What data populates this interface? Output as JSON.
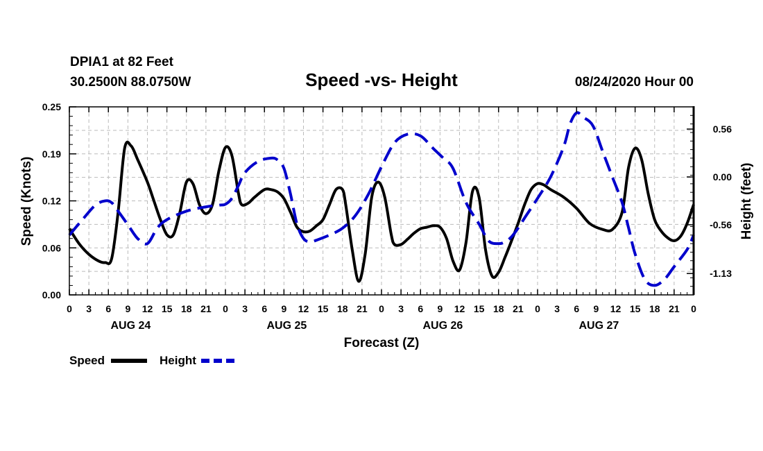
{
  "header": {
    "station": "DPIA1 at 82 Feet",
    "coords": "30.2500N 88.0750W",
    "title": "Speed -vs- Height",
    "datetime": "08/24/2020 Hour 00"
  },
  "legend": {
    "speed_label": "Speed",
    "height_label": "Height"
  },
  "colors": {
    "speed": "#000000",
    "height": "#0000cc",
    "grid": "#bbbbbb",
    "axis": "#000000"
  },
  "chart_data": {
    "type": "line",
    "title": "Speed -vs- Height",
    "xlabel": "Forecast (Z)",
    "ylabel": "Speed (Knots)",
    "y2label": "Height (feet)",
    "xlim": [
      0,
      96
    ],
    "ylim": [
      0,
      0.25
    ],
    "y2lim": [
      -1.38,
      0.82
    ],
    "y_ticks": [
      "0.00",
      "0.06",
      "0.12",
      "0.19",
      "0.25"
    ],
    "y_tick_values": [
      0,
      0.0625,
      0.125,
      0.1875,
      0.25
    ],
    "y2_ticks": [
      "-1.13",
      "-0.56",
      "0.00",
      "0.56"
    ],
    "y2_tick_values": [
      -1.13,
      -0.56,
      0,
      0.56
    ],
    "x_tick_hours": [
      0,
      3,
      6,
      9,
      12,
      15,
      18,
      21,
      24,
      27,
      30,
      33,
      36,
      39,
      42,
      45,
      48,
      51,
      54,
      57,
      60,
      63,
      66,
      69,
      72,
      75,
      78,
      81,
      84,
      87,
      90,
      93,
      96
    ],
    "x_tick_labels": [
      "0",
      "3",
      "6",
      "9",
      "12",
      "15",
      "18",
      "21",
      "0",
      "3",
      "6",
      "9",
      "12",
      "15",
      "18",
      "21",
      "0",
      "3",
      "6",
      "9",
      "12",
      "15",
      "18",
      "21",
      "0",
      "3",
      "6",
      "9",
      "12",
      "15",
      "18",
      "21",
      "0"
    ],
    "day_labels": [
      {
        "hour": 9,
        "label": "AUG 24"
      },
      {
        "hour": 33,
        "label": "AUG 25"
      },
      {
        "hour": 57,
        "label": "AUG 26"
      },
      {
        "hour": 81,
        "label": "AUG 27"
      }
    ],
    "series": [
      {
        "name": "Speed",
        "axis": "left",
        "style": "solid",
        "x": [
          0,
          1.5,
          3,
          4.5,
          5.5,
          6.5,
          7.5,
          8.5,
          9.5,
          10.5,
          12,
          13,
          14,
          15,
          16,
          17,
          18,
          19,
          20,
          21,
          22,
          23,
          24,
          25,
          26,
          26.5,
          27.5,
          28.5,
          30,
          31,
          32,
          33,
          34,
          35,
          36,
          37,
          38,
          39,
          40,
          41,
          42,
          42.5,
          43.5,
          44.5,
          45.5,
          46.5,
          47.5,
          48.5,
          49.5,
          50,
          51,
          52,
          53,
          54,
          55,
          56,
          57,
          58,
          59,
          60,
          61,
          62,
          63,
          64,
          65,
          66,
          67,
          68,
          69,
          70,
          71,
          72,
          73,
          74,
          76,
          78,
          80,
          82,
          83.5,
          85,
          86,
          87,
          88,
          89,
          90,
          91,
          92,
          93,
          94,
          95,
          96
        ],
        "y": [
          0.088,
          0.068,
          0.054,
          0.045,
          0.043,
          0.048,
          0.11,
          0.195,
          0.198,
          0.18,
          0.15,
          0.125,
          0.1,
          0.08,
          0.08,
          0.11,
          0.15,
          0.148,
          0.12,
          0.108,
          0.12,
          0.165,
          0.196,
          0.185,
          0.135,
          0.12,
          0.122,
          0.13,
          0.14,
          0.14,
          0.137,
          0.128,
          0.11,
          0.09,
          0.084,
          0.085,
          0.092,
          0.1,
          0.12,
          0.14,
          0.14,
          0.12,
          0.06,
          0.018,
          0.055,
          0.13,
          0.15,
          0.13,
          0.08,
          0.067,
          0.067,
          0.074,
          0.082,
          0.088,
          0.09,
          0.092,
          0.09,
          0.075,
          0.045,
          0.033,
          0.07,
          0.138,
          0.13,
          0.06,
          0.025,
          0.03,
          0.05,
          0.072,
          0.095,
          0.12,
          0.14,
          0.148,
          0.146,
          0.14,
          0.13,
          0.115,
          0.095,
          0.087,
          0.087,
          0.11,
          0.17,
          0.195,
          0.18,
          0.135,
          0.1,
          0.085,
          0.076,
          0.072,
          0.078,
          0.095,
          0.12
        ]
      },
      {
        "name": "Height",
        "axis": "right",
        "style": "dashed",
        "x": [
          0,
          2,
          4,
          5.5,
          6.5,
          7.5,
          9,
          10.5,
          12,
          13.5,
          15,
          18,
          21,
          23,
          24,
          25,
          26,
          27,
          29,
          31,
          32,
          33,
          34,
          35,
          36,
          37,
          38,
          40,
          42,
          44,
          46,
          48,
          50,
          52,
          54,
          56,
          57.5,
          59,
          61,
          63,
          64.5,
          66,
          67,
          68,
          69,
          70,
          72,
          74,
          76,
          77,
          78,
          79,
          80.5,
          82,
          83.5,
          85,
          86,
          87,
          88.5,
          90,
          91.5,
          93,
          95,
          96
        ],
        "y": [
          -0.68,
          -0.5,
          -0.33,
          -0.28,
          -0.3,
          -0.4,
          -0.56,
          -0.72,
          -0.78,
          -0.6,
          -0.5,
          -0.4,
          -0.35,
          -0.33,
          -0.32,
          -0.25,
          -0.1,
          0.05,
          0.18,
          0.22,
          0.2,
          0.1,
          -0.2,
          -0.55,
          -0.72,
          -0.76,
          -0.74,
          -0.68,
          -0.6,
          -0.45,
          -0.2,
          0.12,
          0.4,
          0.5,
          0.48,
          0.33,
          0.22,
          0.1,
          -0.3,
          -0.55,
          -0.75,
          -0.78,
          -0.76,
          -0.7,
          -0.6,
          -0.48,
          -0.25,
          0.0,
          0.35,
          0.62,
          0.75,
          0.7,
          0.6,
          0.3,
          0.0,
          -0.3,
          -0.6,
          -0.9,
          -1.2,
          -1.27,
          -1.2,
          -1.05,
          -0.85,
          -0.68
        ]
      }
    ],
    "grid": true,
    "legend_position": "bottom-left"
  }
}
